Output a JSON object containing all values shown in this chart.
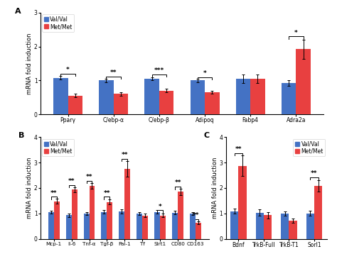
{
  "panel_A": {
    "categories": [
      "Pparγ",
      "C/ebp-α",
      "C/ebp-β",
      "Adipoq",
      "Fabp4",
      "Adra2a"
    ],
    "val_val": [
      1.08,
      1.0,
      1.05,
      1.0,
      1.05,
      0.92
    ],
    "met_met": [
      0.55,
      0.6,
      0.7,
      0.65,
      1.05,
      1.92
    ],
    "val_val_err": [
      0.05,
      0.05,
      0.05,
      0.05,
      0.12,
      0.08
    ],
    "met_met_err": [
      0.05,
      0.06,
      0.05,
      0.05,
      0.12,
      0.28
    ],
    "sig": [
      "*",
      "**",
      "***",
      "*",
      "",
      "*"
    ],
    "sig_heights": [
      1.2,
      1.12,
      1.18,
      1.1,
      null,
      2.3
    ],
    "ylim": [
      0,
      3
    ],
    "yticks": [
      0,
      1,
      2,
      3
    ],
    "ylabel": "mRNA fold induction"
  },
  "panel_B": {
    "categories": [
      "Mcp-1",
      "Il-6",
      "Tnf-α",
      "Tgf-β",
      "Pai-1",
      "Tf",
      "Sirt1",
      "CD80",
      "CD163"
    ],
    "val_val": [
      1.05,
      0.93,
      1.0,
      1.05,
      1.08,
      1.0,
      1.05,
      1.03,
      1.0
    ],
    "met_met": [
      1.47,
      1.93,
      2.08,
      1.45,
      2.75,
      0.92,
      0.92,
      1.85,
      0.62
    ],
    "val_val_err": [
      0.06,
      0.07,
      0.06,
      0.07,
      0.08,
      0.06,
      0.07,
      0.07,
      0.06
    ],
    "met_met_err": [
      0.1,
      0.1,
      0.12,
      0.1,
      0.3,
      0.06,
      0.06,
      0.12,
      0.06
    ],
    "sig": [
      "**",
      "**",
      "**",
      "**",
      "**",
      "",
      "*",
      "**",
      "**"
    ],
    "sig_heights": [
      1.65,
      2.12,
      2.28,
      1.65,
      3.15,
      null,
      1.12,
      2.05,
      0.77
    ],
    "ylim": [
      0,
      4
    ],
    "yticks": [
      0,
      1,
      2,
      3,
      4
    ],
    "ylabel": "mRNA fold induction"
  },
  "panel_C": {
    "categories": [
      "Bdnf",
      "TrkB-Full",
      "TrkB-T1",
      "Sorl1"
    ],
    "val_val": [
      1.08,
      1.03,
      1.0,
      1.0
    ],
    "met_met": [
      2.87,
      0.93,
      0.72,
      2.08
    ],
    "val_val_err": [
      0.1,
      0.12,
      0.08,
      0.1
    ],
    "met_met_err": [
      0.4,
      0.12,
      0.08,
      0.22
    ],
    "sig": [
      "**",
      "",
      "",
      "**"
    ],
    "sig_heights": [
      3.38,
      null,
      null,
      2.42
    ],
    "ylim": [
      0,
      4
    ],
    "yticks": [
      0,
      1,
      2,
      3,
      4
    ],
    "ylabel": "mRNA fold induction"
  },
  "blue_color": "#4472C4",
  "red_color": "#E84040",
  "bar_width": 0.32,
  "label_fontsize": 5.5,
  "tick_fontsize": 5.5,
  "ylabel_fontsize": 6.0,
  "sig_fontsize": 6.5,
  "panel_label_fontsize": 8,
  "legend_fontsize": 5.5
}
